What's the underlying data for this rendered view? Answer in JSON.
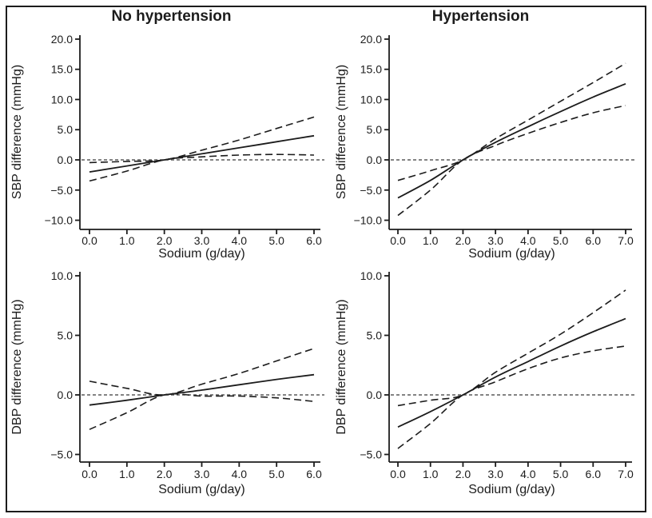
{
  "figure": {
    "background": "#ffffff",
    "border_color": "#1c1c1c",
    "curve_color": "#1c1c1c",
    "reference_line_color": "#5a5a5a",
    "text_color": "#1c1c1c"
  },
  "chart_data": [
    {
      "id": "sbp-no-hypertension",
      "type": "line",
      "title": "No hypertension",
      "xlabel": "Sodium (g/day)",
      "ylabel": "SBP difference (mmHg)",
      "xlim": [
        0,
        6
      ],
      "ylim": [
        -10,
        20
      ],
      "grid": false,
      "legend": false,
      "xticks": [
        0,
        1,
        2,
        3,
        4,
        5,
        6
      ],
      "xtick_labels": [
        "0.0",
        "1.0",
        "2.0",
        "3.0",
        "4.0",
        "5.0",
        "6.0"
      ],
      "yticks": [
        20,
        15,
        10,
        5,
        0,
        -5,
        -10
      ],
      "ytick_labels": [
        "20.0",
        "15.0",
        "10.0",
        "5.0",
        "0.0",
        "−5.0",
        "−10.0"
      ],
      "reference_y": 0,
      "x": [
        0,
        1,
        2,
        3,
        4,
        5,
        6
      ],
      "series": [
        {
          "name": "estimate",
          "style": "solid",
          "values": [
            -2.0,
            -1.0,
            0,
            1.0,
            2.0,
            3.0,
            4.0
          ]
        },
        {
          "name": "upper-95ci",
          "style": "dashed",
          "values": [
            -0.45,
            -0.25,
            0,
            1.6,
            3.3,
            5.2,
            7.1
          ]
        },
        {
          "name": "lower-95ci",
          "style": "dashed",
          "values": [
            -3.5,
            -1.85,
            0,
            0.5,
            0.8,
            0.9,
            0.8
          ]
        }
      ]
    },
    {
      "id": "sbp-hypertension",
      "type": "line",
      "title": "Hypertension",
      "xlabel": "Sodium (g/day)",
      "ylabel": "SBP difference (mmHg)",
      "xlim": [
        0,
        7
      ],
      "ylim": [
        -10,
        20
      ],
      "grid": false,
      "legend": false,
      "xticks": [
        0,
        1,
        2,
        3,
        4,
        5,
        6,
        7
      ],
      "xtick_labels": [
        "0.0",
        "1.0",
        "2.0",
        "3.0",
        "4.0",
        "5.0",
        "6.0",
        "7.0"
      ],
      "yticks": [
        20,
        15,
        10,
        5,
        0,
        -5,
        -10
      ],
      "ytick_labels": [
        "20.0",
        "15.0",
        "10.0",
        "5.0",
        "0.0",
        "−5.0",
        "−10.0"
      ],
      "reference_y": 0,
      "x": [
        0,
        1,
        2,
        3,
        4,
        5,
        6,
        7
      ],
      "series": [
        {
          "name": "estimate",
          "style": "solid",
          "values": [
            -6.3,
            -3.4,
            0,
            2.9,
            5.5,
            8.0,
            10.4,
            12.6
          ]
        },
        {
          "name": "upper-95ci",
          "style": "dashed",
          "values": [
            -3.4,
            -1.8,
            0,
            3.5,
            6.6,
            9.7,
            12.8,
            16.0
          ]
        },
        {
          "name": "lower-95ci",
          "style": "dashed",
          "values": [
            -9.2,
            -5.0,
            0,
            2.4,
            4.4,
            6.2,
            7.8,
            9.0
          ]
        }
      ]
    },
    {
      "id": "dbp-no-hypertension",
      "type": "line",
      "title": "",
      "xlabel": "Sodium (g/day)",
      "ylabel": "DBP difference (mmHg)",
      "xlim": [
        0,
        6
      ],
      "ylim": [
        -5,
        10
      ],
      "grid": false,
      "legend": false,
      "xticks": [
        0,
        1,
        2,
        3,
        4,
        5,
        6
      ],
      "xtick_labels": [
        "0.0",
        "1.0",
        "2.0",
        "3.0",
        "4.0",
        "5.0",
        "6.0"
      ],
      "yticks": [
        10,
        5,
        0,
        -5
      ],
      "ytick_labels": [
        "10.0",
        "5.0",
        "0.0",
        "−5.0"
      ],
      "reference_y": 0,
      "x": [
        0,
        1,
        2,
        3,
        4,
        5,
        6
      ],
      "series": [
        {
          "name": "estimate",
          "style": "solid",
          "values": [
            -0.85,
            -0.45,
            0,
            0.4,
            0.85,
            1.3,
            1.7
          ]
        },
        {
          "name": "upper-95ci",
          "style": "dashed",
          "values": [
            1.15,
            0.55,
            0,
            0.9,
            1.8,
            2.85,
            3.9
          ]
        },
        {
          "name": "lower-95ci",
          "style": "dashed",
          "values": [
            -2.9,
            -1.5,
            0,
            -0.1,
            -0.1,
            -0.25,
            -0.55
          ]
        }
      ]
    },
    {
      "id": "dbp-hypertension",
      "type": "line",
      "title": "",
      "xlabel": "Sodium (g/day)",
      "ylabel": "DBP difference (mmHg)",
      "xlim": [
        0,
        7
      ],
      "ylim": [
        -5,
        10
      ],
      "grid": false,
      "legend": false,
      "xticks": [
        0,
        1,
        2,
        3,
        4,
        5,
        6,
        7
      ],
      "xtick_labels": [
        "0.0",
        "1.0",
        "2.0",
        "3.0",
        "4.0",
        "5.0",
        "6.0",
        "7.0"
      ],
      "yticks": [
        10,
        5,
        0,
        -5
      ],
      "ytick_labels": [
        "10.0",
        "5.0",
        "0.0",
        "−5.0"
      ],
      "reference_y": 0,
      "x": [
        0,
        1,
        2,
        3,
        4,
        5,
        6,
        7
      ],
      "series": [
        {
          "name": "estimate",
          "style": "solid",
          "values": [
            -2.7,
            -1.4,
            0,
            1.5,
            2.8,
            4.1,
            5.3,
            6.4
          ]
        },
        {
          "name": "upper-95ci",
          "style": "dashed",
          "values": [
            -0.9,
            -0.45,
            0,
            1.9,
            3.5,
            5.1,
            6.9,
            8.8
          ]
        },
        {
          "name": "lower-95ci",
          "style": "dashed",
          "values": [
            -4.5,
            -2.4,
            0,
            1.1,
            2.2,
            3.1,
            3.7,
            4.1
          ]
        }
      ]
    }
  ]
}
